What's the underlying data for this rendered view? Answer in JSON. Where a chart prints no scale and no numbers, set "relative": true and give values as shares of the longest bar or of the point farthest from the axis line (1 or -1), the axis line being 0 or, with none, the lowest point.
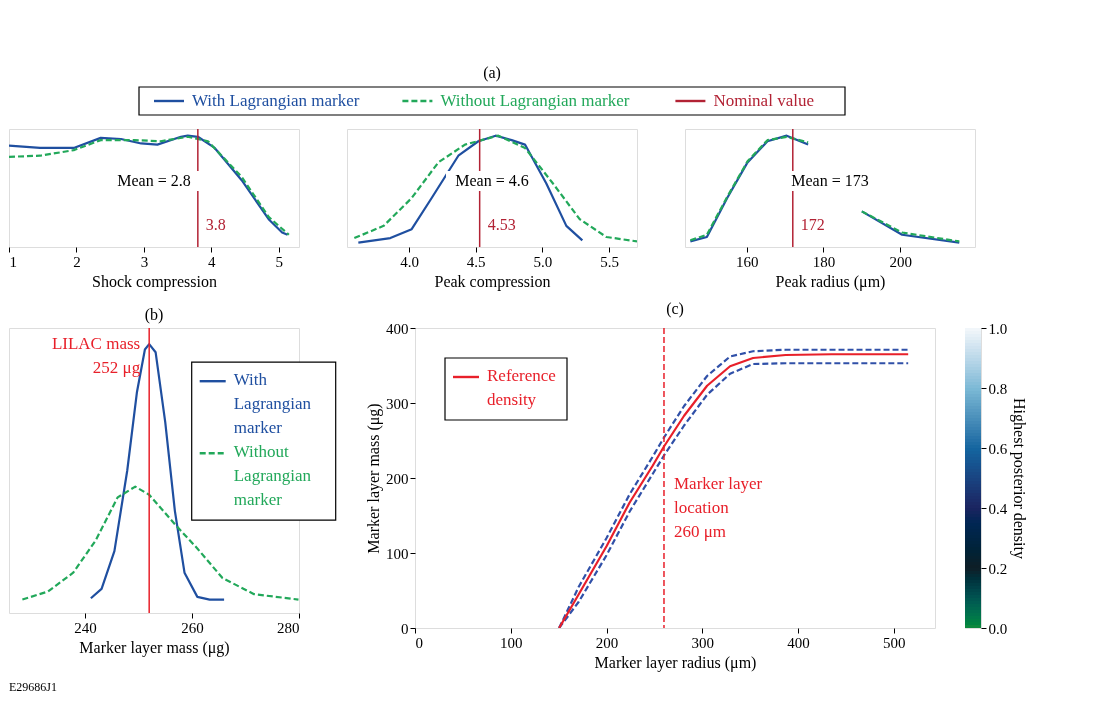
{
  "chart_data": [
    {
      "type": "line",
      "xlabel": "Shock compression",
      "relative": true,
      "xlim": [
        1,
        5.3
      ],
      "xticks": [
        1,
        2,
        3,
        4,
        5
      ],
      "series": [
        {
          "color": "#1f4fa0",
          "line_style": "solid",
          "x": [
            1.0,
            1.46,
            1.76,
            1.96,
            2.36,
            2.66,
            2.96,
            3.2,
            3.55,
            3.65,
            3.8,
            4.05,
            4.45,
            4.85,
            5.05,
            5.13
          ],
          "values": [
            0.91,
            0.89,
            0.89,
            0.89,
            0.98,
            0.97,
            0.93,
            0.92,
            0.99,
            1.0,
            0.99,
            0.89,
            0.6,
            0.25,
            0.13,
            0.11
          ]
        },
        {
          "color": "#22a85a",
          "line_style": "dashed",
          "x": [
            1.0,
            1.46,
            1.96,
            2.36,
            2.86,
            3.25,
            3.65,
            3.95,
            4.45,
            4.85,
            5.15
          ],
          "values": [
            0.81,
            0.82,
            0.87,
            0.96,
            0.96,
            0.95,
            0.99,
            0.95,
            0.63,
            0.27,
            0.11
          ]
        }
      ],
      "ref_lines": [
        {
          "axis": "x",
          "value": 3.8,
          "color": "#b22234"
        }
      ],
      "annotations": [
        "Mean = 2.8",
        {
          "text": "3.8",
          "x": 3.8,
          "y": 0.2
        }
      ]
    },
    {
      "type": "line",
      "title": "(a)",
      "xlabel": "Peak compression",
      "relative": true,
      "legend": "top",
      "xlim": [
        3.535,
        5.71
      ],
      "xticks": [
        {
          "value": 4,
          "label": "4.0"
        },
        4.5,
        {
          "value": 5,
          "label": "5.0"
        },
        5.5
      ],
      "series": [
        {
          "name": "With Lagrangian marker",
          "color": "#1f4fa0",
          "line_style": "solid",
          "x": [
            3.62,
            3.86,
            4.02,
            4.17,
            4.37,
            4.52,
            4.65,
            4.77,
            4.87,
            5.03,
            5.18,
            5.3
          ],
          "values": [
            0.04,
            0.08,
            0.16,
            0.44,
            0.82,
            0.95,
            1.0,
            0.96,
            0.92,
            0.57,
            0.19,
            0.06
          ]
        },
        {
          "name": "Without Lagrangian marker",
          "color": "#22a85a",
          "line_style": "dashed",
          "x": [
            3.59,
            3.81,
            4.02,
            4.22,
            4.42,
            4.67,
            4.87,
            5.08,
            5.28,
            5.48,
            5.71
          ],
          "values": [
            0.08,
            0.19,
            0.44,
            0.76,
            0.92,
            1.0,
            0.89,
            0.57,
            0.25,
            0.09,
            0.05
          ]
        }
      ],
      "ref_lines": [
        {
          "axis": "x",
          "value": 4.53,
          "label": "Nominal value",
          "color": "#b22234"
        }
      ],
      "annotations": [
        "Mean = 4.6",
        {
          "text": "4.53",
          "x": 4.53,
          "y": 0.2
        }
      ]
    },
    {
      "type": "line",
      "xlabel": "Peak radius (μm)",
      "relative": true,
      "xlim": [
        143.9,
        219.5
      ],
      "xticks": [
        160,
        180,
        200
      ],
      "series": [
        {
          "color": "#1f4fa0",
          "line_style": "solid",
          "x": [
            145.3,
            149.6,
            154.9,
            160.2,
            165.4,
            170.4,
            176,
            183,
            190,
            200.5,
            215.4
          ],
          "values": [
            0.05,
            0.09,
            0.44,
            0.76,
            0.95,
            1.0,
            0.92,
            null,
            0.32,
            0.11,
            0.04
          ]
        },
        {
          "color": "#22a85a",
          "line_style": "dashed",
          "x": [
            145.3,
            149.6,
            154.9,
            160.2,
            165.4,
            170.4,
            176,
            183,
            190,
            200.5,
            215.4
          ],
          "values": [
            0.06,
            0.11,
            0.45,
            0.77,
            0.96,
            0.99,
            0.94,
            null,
            0.32,
            0.13,
            0.05
          ]
        }
      ],
      "ref_lines": [
        {
          "axis": "x",
          "value": 172,
          "color": "#b22234"
        }
      ],
      "annotations": [
        "Mean = 173",
        {
          "text": "172",
          "x": 172,
          "y": 0.2
        }
      ]
    },
    {
      "type": "line",
      "title": "(b)",
      "xlabel": "Marker layer mass (μg)",
      "relative": true,
      "legend": "top right",
      "xlim": [
        225.8,
        280
      ],
      "xticks": [
        240,
        260,
        280
      ],
      "series": [
        {
          "name": "With Lagrangian marker",
          "color": "#1f4fa0",
          "line_style": "solid",
          "x": [
            241.1,
            243.1,
            245.5,
            247.9,
            249.7,
            251.2,
            252.0,
            253.2,
            255.0,
            256.8,
            258.6,
            261,
            263.3,
            266
          ],
          "values": [
            0.055,
            0.09,
            0.23,
            0.53,
            0.82,
            0.98,
            1.0,
            0.97,
            0.71,
            0.38,
            0.15,
            0.06,
            0.05,
            0.05
          ]
        },
        {
          "name": "Without Lagrangian marker",
          "color": "#22a85a",
          "line_style": "dashed",
          "x": [
            228.3,
            233.1,
            237.8,
            242,
            246.1,
            249.4,
            252,
            256.8,
            261,
            265.7,
            271.6,
            279.9
          ],
          "values": [
            0.05,
            0.08,
            0.15,
            0.27,
            0.43,
            0.47,
            0.44,
            0.33,
            0.24,
            0.13,
            0.07,
            0.05
          ]
        }
      ],
      "ref_lines": [
        {
          "axis": "x",
          "value": 252,
          "label": "LILAC mass\n252 μg",
          "color": "#e8202a"
        }
      ]
    },
    {
      "type": "line",
      "title": "(c)",
      "xlabel": "Marker layer radius (μm)",
      "ylabel": "Marker layer mass (μg)",
      "legend": "top left",
      "xlim": [
        0,
        543
      ],
      "xticks": [
        0,
        100,
        200,
        300,
        400,
        500
      ],
      "ylim": [
        0,
        400
      ],
      "yticks": [
        0,
        100,
        200,
        300,
        400
      ],
      "x": [
        150.5,
        171,
        200,
        224,
        248,
        260,
        281,
        305,
        329,
        353,
        387,
        435,
        515
      ],
      "series": [
        {
          "color": "#3050a8",
          "line_style": "dashed",
          "values": [
            0,
            35,
            97,
            155,
            205,
            230,
            270,
            311,
            339,
            352,
            353,
            353,
            353
          ]
        },
        {
          "color": "#3050a8",
          "line_style": "dashed",
          "values": [
            0,
            55,
            120,
            178,
            228,
            254,
            296,
            336,
            362,
            369,
            371,
            371,
            371
          ]
        },
        {
          "name": "Reference density",
          "color": "#e8202a",
          "line_style": "solid",
          "values": [
            0,
            45,
            109,
            167,
            216,
            242,
            283,
            323,
            349,
            360,
            364,
            365,
            365
          ]
        }
      ],
      "ref_lines": [
        {
          "axis": "x",
          "value": 260,
          "label": "Marker layer\nlocation\n260 μm",
          "color": "#e8202a",
          "line_style": "dashed"
        }
      ],
      "clabel": "Highest posterior density",
      "clim": [
        0,
        1
      ],
      "cticks": [
        {
          "value": 0,
          "label": "0.0"
        },
        0.2,
        0.4,
        0.6,
        0.8,
        {
          "value": 1,
          "label": "1.0"
        }
      ],
      "annotations": [
        "E29686J1"
      ]
    }
  ]
}
